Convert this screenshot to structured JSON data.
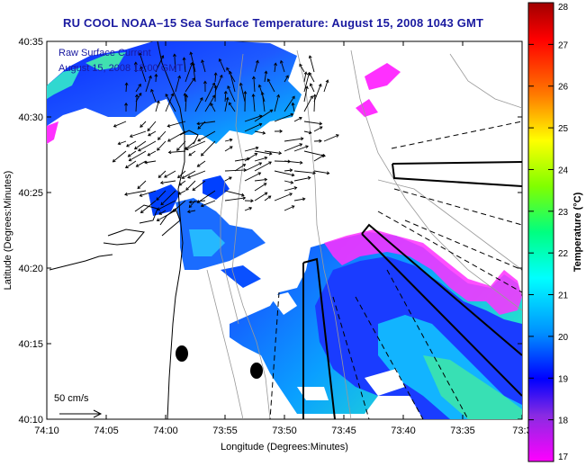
{
  "title": "RU COOL  NOAA–15  Sea Surface Temperature:  August 15, 2008 1043 GMT",
  "overlay": {
    "line1": "Raw Surface Current",
    "line2": "August 15, 2008 12:00 GMT",
    "scale_label": "50 cm/s"
  },
  "map": {
    "xlabel": "Longitude (Degrees:Minutes)",
    "ylabel": "Latitude (Degrees:Minutes)",
    "x_ticks": [
      "74:10",
      "74:05",
      "74:00",
      "73:55",
      "73:50",
      "73:45",
      "73:40",
      "73:35",
      "73:3"
    ],
    "y_ticks": [
      "40:35",
      "40:30",
      "40:25",
      "40:20",
      "40:15",
      "40:10"
    ],
    "lon_range": [
      -74.1667,
      -73.5167
    ],
    "lat_range": [
      40.1667,
      40.5833
    ]
  },
  "colorbar": {
    "label": "Temperature (°C)",
    "ticks": [
      "28",
      "27",
      "26",
      "25",
      "24",
      "23",
      "22",
      "21",
      "20",
      "19",
      "18",
      "17"
    ],
    "range": [
      17,
      28
    ],
    "colors": [
      "#ff00ff",
      "#8a2be2",
      "#0000ff",
      "#0080ff",
      "#00ffff",
      "#00ff80",
      "#80ff00",
      "#ffff00",
      "#ffa000",
      "#ff4000",
      "#ff0000",
      "#a00000"
    ]
  }
}
